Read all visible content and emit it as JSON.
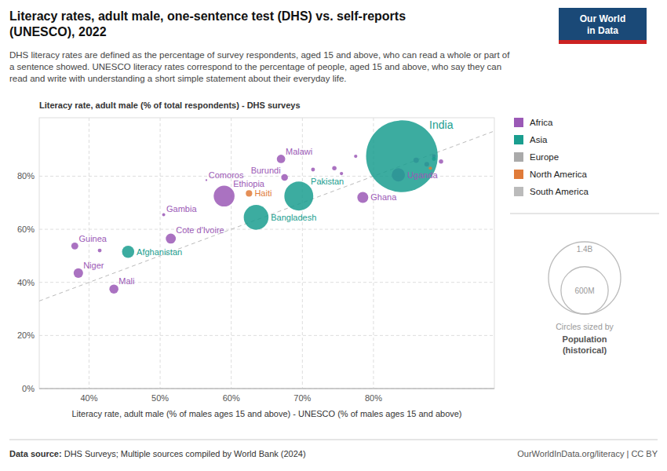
{
  "chart_data": {
    "type": "scatter",
    "title": "Literacy rates, adult male, one-sentence test (DHS) vs. self-reports\n(UNESCO), 2022",
    "subtitle": "DHS literacy rates are defined as the percentage of survey respondents, aged 15 and above, who can read a whole or part of\na sentence showed. UNESCO literacy rates correspond to the percentage of people, aged 15 and above, who say they can\nread and write with understanding a short simple statement about their everyday life.",
    "ylabel": "Literacy rate, adult male (% of total respondents) - DHS surveys",
    "xlabel": "Literacy rate, adult male (% of males ages 15 and above) - UNESCO (% of males ages 15 and above)",
    "xlim": [
      0.33,
      0.97
    ],
    "ylim": [
      0.0,
      1.02
    ],
    "xticks": [
      {
        "value": 0.4,
        "label": "40%"
      },
      {
        "value": 0.5,
        "label": "50%"
      },
      {
        "value": 0.6,
        "label": "60%"
      },
      {
        "value": 0.7,
        "label": "70%"
      },
      {
        "value": 0.8,
        "label": "80%"
      }
    ],
    "yticks": [
      {
        "value": 0.0,
        "label": "0%"
      },
      {
        "value": 0.2,
        "label": "20%"
      },
      {
        "value": 0.4,
        "label": "40%"
      },
      {
        "value": 0.6,
        "label": "60%"
      },
      {
        "value": 0.8,
        "label": "80%"
      }
    ],
    "grid": true,
    "legend": "right",
    "series": [
      {
        "name": "Africa",
        "color": "#9B59B6",
        "labels": [
          "Guinea",
          "Niger",
          "Mali",
          "Gambia",
          "Cote d'Ivoire",
          "Comoros",
          "Ethiopia",
          "Malawi",
          "Burundi",
          "Ghana",
          "Uganda",
          null,
          null,
          null,
          null,
          null,
          null,
          null,
          null,
          null
        ],
        "x": [
          0.38,
          0.385,
          0.435,
          0.505,
          0.515,
          0.565,
          0.59,
          0.67,
          0.675,
          0.785,
          0.835,
          0.745,
          0.755,
          0.775,
          0.86,
          0.875,
          0.885,
          0.895,
          0.415,
          0.715
        ],
        "values": [
          0.537,
          0.435,
          0.375,
          0.655,
          0.565,
          0.785,
          0.725,
          0.865,
          0.795,
          0.72,
          0.805,
          0.83,
          0.81,
          0.875,
          0.86,
          0.845,
          0.875,
          0.855,
          0.52,
          0.825
        ],
        "sizes": [
          13000000,
          24000000,
          22000000,
          2500000,
          27000000,
          900000,
          117000000,
          19000000,
          12000000,
          32000000,
          47000000,
          5000000,
          3000000,
          3000000,
          8000000,
          6000000,
          4000000,
          5000000,
          4000000,
          4000000
        ]
      },
      {
        "name": "Asia",
        "color": "#1A9E8F",
        "labels": [
          "Afghanistan",
          "Bangladesh",
          "Pakistan",
          "India",
          null
        ],
        "x": [
          0.455,
          0.635,
          0.695,
          0.84,
          0.885
        ],
        "values": [
          0.515,
          0.645,
          0.725,
          0.875,
          0.865
        ],
        "sizes": [
          40000000,
          165000000,
          225000000,
          1380000000,
          4000000
        ]
      },
      {
        "name": "Europe",
        "color": "#AAAAAA",
        "labels": [],
        "x": [],
        "values": [],
        "sizes": []
      },
      {
        "name": "North America",
        "color": "#E07B39",
        "labels": [
          "Haiti",
          null
        ],
        "x": [
          0.625,
          0.88
        ],
        "values": [
          0.735,
          0.83
        ],
        "sizes": [
          11000000,
          3000000
        ]
      },
      {
        "name": "South America",
        "color": "#BBBBBB",
        "labels": [],
        "x": [],
        "values": [],
        "sizes": []
      }
    ],
    "size_legend": [
      {
        "value": 1400000000,
        "label": "1.4B"
      },
      {
        "value": 600000000,
        "label": "600M"
      }
    ],
    "size_legend_title": "Circles sized by",
    "size_legend_name": "Population\n(historical)",
    "logo": {
      "text": [
        "Our World",
        "in Data"
      ],
      "colors": [
        "#1a4977",
        "#CC2222"
      ]
    },
    "source_label": "Data source:",
    "source_text": " DHS Surveys; Multiple sources compiled by World Bank (2024)",
    "url": "OurWorldInData.org/literacy | CC BY"
  }
}
